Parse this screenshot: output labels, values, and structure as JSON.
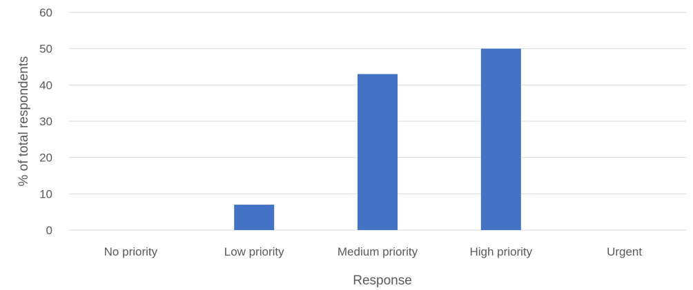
{
  "chart_data": {
    "type": "bar",
    "title": "",
    "xlabel": "Response",
    "ylabel": "% of total respondents",
    "categories": [
      "No priority",
      "Low priority",
      "Medium priority",
      "High priority",
      "Urgent"
    ],
    "values": [
      0,
      7,
      43,
      50,
      0
    ],
    "ylim": [
      0,
      60
    ],
    "yticks": [
      0,
      10,
      20,
      30,
      40,
      50,
      60
    ],
    "grid": true,
    "legend": "none",
    "bar_color": "#4472c4",
    "grid_color": "#d9d9d9",
    "text_color": "#595959"
  }
}
